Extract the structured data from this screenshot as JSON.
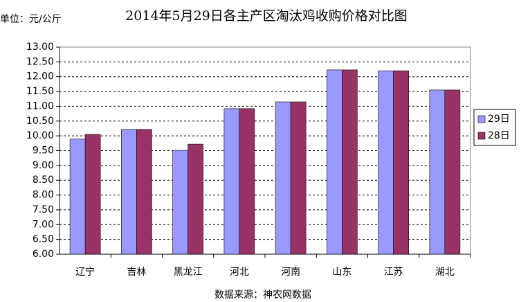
{
  "chart_data": {
    "type": "bar",
    "title": "2014年5月29日各主产区淘汰鸡收购价格对比图",
    "unit_label": "单位：元/公斤",
    "source": "数据来源：神农网数据",
    "categories": [
      "辽宁",
      "吉林",
      "黑龙江",
      "河北",
      "河南",
      "山东",
      "江苏",
      "湖北"
    ],
    "series": [
      {
        "name": "29日",
        "color": "#9999ff",
        "values": [
          9.89,
          10.22,
          9.51,
          10.92,
          11.15,
          12.23,
          12.2,
          11.55
        ]
      },
      {
        "name": "28日",
        "color": "#993366",
        "values": [
          10.05,
          10.22,
          9.72,
          10.92,
          11.15,
          12.23,
          12.2,
          11.55
        ]
      }
    ],
    "ylim": [
      6,
      13
    ],
    "yticks": [
      {
        "value": 6,
        "label": "6.00"
      },
      {
        "value": 6.5,
        "label": "6.50"
      },
      {
        "value": 7,
        "label": "7.00"
      },
      {
        "value": 7.5,
        "label": "7.50"
      },
      {
        "value": 8,
        "label": "8.00"
      },
      {
        "value": 8.5,
        "label": "8.50"
      },
      {
        "value": 9,
        "label": "9.00"
      },
      {
        "value": 9.5,
        "label": "9.50"
      },
      {
        "value": 10,
        "label": "10.00"
      },
      {
        "value": 10.5,
        "label": "10.50"
      },
      {
        "value": 11,
        "label": "11.00"
      },
      {
        "value": 11.5,
        "label": "11.50"
      },
      {
        "value": 12,
        "label": "12.00"
      },
      {
        "value": 12.5,
        "label": "12.50"
      },
      {
        "value": 13,
        "label": "13.00"
      }
    ],
    "grid": true,
    "legend": "right"
  }
}
